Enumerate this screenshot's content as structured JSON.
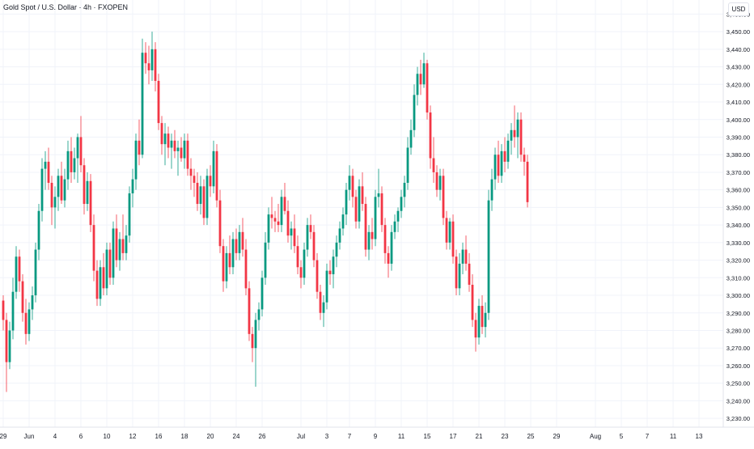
{
  "header": {
    "title": "Gold Spot / U.S. Dollar · 4h · FXOPEN",
    "currency": "USD"
  },
  "colors": {
    "up": "#089981",
    "down": "#f23645",
    "grid": "#f0f3fa",
    "axis_text": "#131722"
  },
  "chart_data": {
    "type": "candlestick",
    "title": "Gold Spot / U.S. Dollar · 4h · FXOPEN",
    "ylim": [
      3225,
      3468
    ],
    "y_ticks": [
      3230,
      3240,
      3250,
      3260,
      3270,
      3280,
      3290,
      3300,
      3310,
      3320,
      3330,
      3340,
      3350,
      3360,
      3370,
      3380,
      3390,
      3400,
      3410,
      3420,
      3430,
      3440,
      3450,
      3460
    ],
    "y_tick_labels": [
      "3,230.00",
      "3,240.00",
      "3,250.00",
      "3,260.00",
      "3,270.00",
      "3,280.00",
      "3,290.00",
      "3,300.00",
      "3,310.00",
      "3,320.00",
      "3,330.00",
      "3,340.00",
      "3,350.00",
      "3,360.00",
      "3,370.00",
      "3,380.00",
      "3,390.00",
      "3,400.00",
      "3,410.00",
      "3,420.00",
      "3,430.00",
      "3,440.00",
      "3,450.00",
      "3,460.00"
    ],
    "x_ticks": [
      {
        "label": "29",
        "index": 0
      },
      {
        "label": "Jun",
        "index": 8
      },
      {
        "label": "4",
        "index": 16
      },
      {
        "label": "6",
        "index": 24
      },
      {
        "label": "10",
        "index": 32
      },
      {
        "label": "12",
        "index": 40
      },
      {
        "label": "16",
        "index": 48
      },
      {
        "label": "18",
        "index": 56
      },
      {
        "label": "20",
        "index": 64
      },
      {
        "label": "24",
        "index": 72
      },
      {
        "label": "26",
        "index": 80
      },
      {
        "label": "Jul",
        "index": 92
      },
      {
        "label": "3",
        "index": 100
      },
      {
        "label": "7",
        "index": 107
      },
      {
        "label": "9",
        "index": 115
      },
      {
        "label": "11",
        "index": 123
      },
      {
        "label": "15",
        "index": 131
      },
      {
        "label": "17",
        "index": 139
      },
      {
        "label": "21",
        "index": 147
      },
      {
        "label": "23",
        "index": 155
      },
      {
        "label": "25",
        "index": 163
      },
      {
        "label": "29",
        "index": 171
      },
      {
        "label": "Aug",
        "index": 183
      },
      {
        "label": "5",
        "index": 191
      },
      {
        "label": "7",
        "index": 199
      },
      {
        "label": "11",
        "index": 207
      },
      {
        "label": "13",
        "index": 215
      }
    ],
    "candles": [
      [
        3297,
        3300,
        3280,
        3286
      ],
      [
        3286,
        3290,
        3245,
        3262
      ],
      [
        3262,
        3285,
        3258,
        3280
      ],
      [
        3280,
        3310,
        3275,
        3302
      ],
      [
        3302,
        3328,
        3298,
        3322
      ],
      [
        3322,
        3326,
        3302,
        3308
      ],
      [
        3308,
        3312,
        3285,
        3290
      ],
      [
        3290,
        3298,
        3272,
        3278
      ],
      [
        3278,
        3296,
        3274,
        3292
      ],
      [
        3292,
        3305,
        3286,
        3300
      ],
      [
        3300,
        3330,
        3296,
        3326
      ],
      [
        3326,
        3352,
        3320,
        3348
      ],
      [
        3348,
        3378,
        3342,
        3372
      ],
      [
        3372,
        3382,
        3360,
        3376
      ],
      [
        3376,
        3384,
        3360,
        3364
      ],
      [
        3364,
        3368,
        3340,
        3350
      ],
      [
        3350,
        3362,
        3338,
        3356
      ],
      [
        3356,
        3372,
        3348,
        3368
      ],
      [
        3368,
        3376,
        3352,
        3354
      ],
      [
        3354,
        3372,
        3350,
        3366
      ],
      [
        3366,
        3388,
        3360,
        3382
      ],
      [
        3382,
        3390,
        3364,
        3370
      ],
      [
        3370,
        3384,
        3366,
        3378
      ],
      [
        3378,
        3392,
        3364,
        3390
      ],
      [
        3390,
        3402,
        3370,
        3374
      ],
      [
        3374,
        3378,
        3346,
        3352
      ],
      [
        3352,
        3370,
        3348,
        3365
      ],
      [
        3365,
        3369,
        3336,
        3340
      ],
      [
        3340,
        3346,
        3308,
        3314
      ],
      [
        3314,
        3320,
        3294,
        3298
      ],
      [
        3298,
        3320,
        3294,
        3316
      ],
      [
        3316,
        3324,
        3300,
        3304
      ],
      [
        3304,
        3330,
        3300,
        3326
      ],
      [
        3326,
        3330,
        3306,
        3310
      ],
      [
        3310,
        3342,
        3306,
        3338
      ],
      [
        3338,
        3346,
        3316,
        3320
      ],
      [
        3320,
        3336,
        3314,
        3332
      ],
      [
        3332,
        3346,
        3320,
        3324
      ],
      [
        3324,
        3340,
        3320,
        3334
      ],
      [
        3334,
        3362,
        3330,
        3358
      ],
      [
        3358,
        3372,
        3350,
        3366
      ],
      [
        3366,
        3392,
        3360,
        3388
      ],
      [
        3388,
        3400,
        3374,
        3380
      ],
      [
        3380,
        3446,
        3378,
        3438
      ],
      [
        3438,
        3444,
        3426,
        3432
      ],
      [
        3432,
        3442,
        3420,
        3428
      ],
      [
        3428,
        3450,
        3422,
        3440
      ],
      [
        3440,
        3444,
        3416,
        3422
      ],
      [
        3422,
        3426,
        3394,
        3398
      ],
      [
        3398,
        3402,
        3380,
        3386
      ],
      [
        3386,
        3398,
        3374,
        3392
      ],
      [
        3392,
        3396,
        3378,
        3384
      ],
      [
        3384,
        3392,
        3372,
        3388
      ],
      [
        3388,
        3394,
        3378,
        3382
      ],
      [
        3382,
        3388,
        3368,
        3384
      ],
      [
        3384,
        3390,
        3376,
        3378
      ],
      [
        3378,
        3392,
        3372,
        3388
      ],
      [
        3388,
        3392,
        3368,
        3372
      ],
      [
        3372,
        3378,
        3360,
        3368
      ],
      [
        3368,
        3372,
        3356,
        3364
      ],
      [
        3364,
        3370,
        3348,
        3352
      ],
      [
        3352,
        3368,
        3346,
        3362
      ],
      [
        3362,
        3366,
        3340,
        3344
      ],
      [
        3344,
        3372,
        3340,
        3368
      ],
      [
        3368,
        3374,
        3356,
        3362
      ],
      [
        3362,
        3388,
        3358,
        3382
      ],
      [
        3382,
        3386,
        3350,
        3354
      ],
      [
        3354,
        3360,
        3324,
        3328
      ],
      [
        3328,
        3332,
        3302,
        3308
      ],
      [
        3308,
        3328,
        3304,
        3324
      ],
      [
        3324,
        3334,
        3312,
        3316
      ],
      [
        3316,
        3336,
        3312,
        3332
      ],
      [
        3332,
        3338,
        3320,
        3324
      ],
      [
        3324,
        3340,
        3320,
        3336
      ],
      [
        3336,
        3344,
        3322,
        3326
      ],
      [
        3326,
        3332,
        3300,
        3304
      ],
      [
        3304,
        3308,
        3274,
        3278
      ],
      [
        3278,
        3282,
        3262,
        3270
      ],
      [
        3270,
        3290,
        3248,
        3286
      ],
      [
        3286,
        3296,
        3280,
        3292
      ],
      [
        3292,
        3314,
        3288,
        3310
      ],
      [
        3310,
        3336,
        3306,
        3330
      ],
      [
        3330,
        3350,
        3326,
        3346
      ],
      [
        3346,
        3356,
        3338,
        3344
      ],
      [
        3344,
        3348,
        3336,
        3342
      ],
      [
        3342,
        3352,
        3336,
        3340
      ],
      [
        3340,
        3360,
        3336,
        3356
      ],
      [
        3356,
        3364,
        3346,
        3348
      ],
      [
        3348,
        3354,
        3330,
        3334
      ],
      [
        3334,
        3342,
        3326,
        3338
      ],
      [
        3338,
        3346,
        3324,
        3328
      ],
      [
        3328,
        3334,
        3312,
        3316
      ],
      [
        3316,
        3320,
        3304,
        3310
      ],
      [
        3310,
        3330,
        3306,
        3326
      ],
      [
        3326,
        3344,
        3322,
        3340
      ],
      [
        3340,
        3346,
        3332,
        3336
      ],
      [
        3336,
        3340,
        3316,
        3320
      ],
      [
        3320,
        3324,
        3298,
        3302
      ],
      [
        3302,
        3306,
        3286,
        3290
      ],
      [
        3290,
        3300,
        3282,
        3296
      ],
      [
        3296,
        3318,
        3292,
        3314
      ],
      [
        3314,
        3320,
        3306,
        3312
      ],
      [
        3312,
        3326,
        3304,
        3322
      ],
      [
        3322,
        3334,
        3316,
        3330
      ],
      [
        3330,
        3342,
        3326,
        3338
      ],
      [
        3338,
        3350,
        3334,
        3346
      ],
      [
        3346,
        3364,
        3340,
        3360
      ],
      [
        3360,
        3374,
        3354,
        3368
      ],
      [
        3368,
        3372,
        3350,
        3356
      ],
      [
        3356,
        3360,
        3338,
        3342
      ],
      [
        3342,
        3366,
        3338,
        3362
      ],
      [
        3362,
        3370,
        3348,
        3352
      ],
      [
        3352,
        3356,
        3322,
        3326
      ],
      [
        3326,
        3340,
        3320,
        3336
      ],
      [
        3336,
        3344,
        3326,
        3332
      ],
      [
        3332,
        3360,
        3328,
        3356
      ],
      [
        3356,
        3372,
        3350,
        3358
      ],
      [
        3358,
        3362,
        3336,
        3340
      ],
      [
        3340,
        3344,
        3318,
        3324
      ],
      [
        3324,
        3328,
        3310,
        3318
      ],
      [
        3318,
        3340,
        3314,
        3336
      ],
      [
        3336,
        3346,
        3332,
        3342
      ],
      [
        3342,
        3350,
        3336,
        3348
      ],
      [
        3348,
        3360,
        3344,
        3356
      ],
      [
        3356,
        3368,
        3350,
        3364
      ],
      [
        3364,
        3390,
        3360,
        3384
      ],
      [
        3384,
        3400,
        3380,
        3394
      ],
      [
        3394,
        3420,
        3390,
        3414
      ],
      [
        3414,
        3430,
        3408,
        3426
      ],
      [
        3426,
        3434,
        3414,
        3420
      ],
      [
        3420,
        3438,
        3418,
        3432
      ],
      [
        3432,
        3434,
        3400,
        3404
      ],
      [
        3404,
        3408,
        3372,
        3378
      ],
      [
        3378,
        3390,
        3364,
        3370
      ],
      [
        3370,
        3374,
        3356,
        3360
      ],
      [
        3360,
        3372,
        3354,
        3368
      ],
      [
        3368,
        3372,
        3340,
        3344
      ],
      [
        3344,
        3348,
        3326,
        3330
      ],
      [
        3330,
        3344,
        3326,
        3342
      ],
      [
        3342,
        3346,
        3318,
        3322
      ],
      [
        3322,
        3326,
        3300,
        3304
      ],
      [
        3304,
        3324,
        3300,
        3318
      ],
      [
        3318,
        3330,
        3312,
        3326
      ],
      [
        3326,
        3334,
        3314,
        3318
      ],
      [
        3318,
        3324,
        3302,
        3306
      ],
      [
        3306,
        3312,
        3282,
        3286
      ],
      [
        3286,
        3290,
        3268,
        3276
      ],
      [
        3276,
        3298,
        3272,
        3294
      ],
      [
        3294,
        3300,
        3278,
        3282
      ],
      [
        3282,
        3296,
        3276,
        3290
      ],
      [
        3290,
        3360,
        3286,
        3354
      ],
      [
        3354,
        3372,
        3348,
        3366
      ],
      [
        3366,
        3384,
        3360,
        3380
      ],
      [
        3380,
        3388,
        3364,
        3368
      ],
      [
        3368,
        3386,
        3364,
        3382
      ],
      [
        3382,
        3390,
        3370,
        3376
      ],
      [
        3376,
        3392,
        3372,
        3388
      ],
      [
        3388,
        3398,
        3380,
        3394
      ],
      [
        3394,
        3408,
        3384,
        3390
      ],
      [
        3390,
        3404,
        3378,
        3400
      ],
      [
        3400,
        3404,
        3376,
        3380
      ],
      [
        3380,
        3384,
        3368,
        3376
      ],
      [
        3376,
        3380,
        3350,
        3353
      ]
    ]
  }
}
